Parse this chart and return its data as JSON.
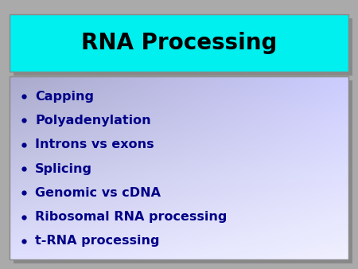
{
  "title": "RNA Processing",
  "title_bg_color": "#00EFEF",
  "title_text_color": "#000000",
  "title_fontsize": 20,
  "outer_bg_color": "#AAAAAA",
  "body_bg_color_topleft": "#AAAACC",
  "body_bg_color_bottomright": "#F0F0FF",
  "bullet_items": [
    "Capping",
    "Polyadenylation",
    "Introns vs exons",
    "Splicing",
    "Genomic vs cDNA",
    "Ribosomal RNA processing",
    "t-RNA processing"
  ],
  "bullet_fontsize": 11.5,
  "bullet_text_color": "#000088",
  "bullet_color": "#000088",
  "shadow_color": "#888888",
  "border_color": "#888888"
}
